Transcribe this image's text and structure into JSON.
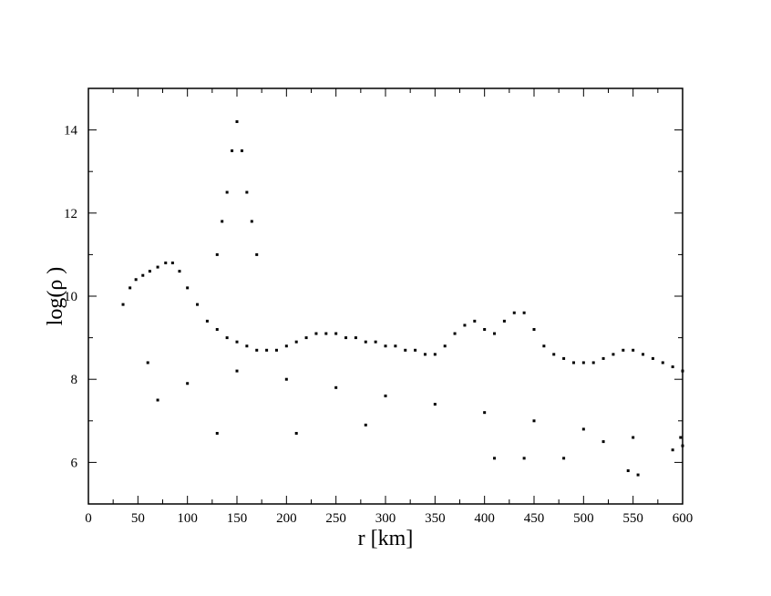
{
  "chart_data": {
    "type": "scatter",
    "title": "",
    "xlabel": "r [km]",
    "ylabel": "log(ρ )",
    "xlim": [
      0,
      600
    ],
    "ylim": [
      5,
      15
    ],
    "x_ticks": [
      "0",
      "50",
      "100",
      "150",
      "200",
      "250",
      "300",
      "350",
      "400",
      "450",
      "500",
      "550",
      "600"
    ],
    "y_ticks": [
      "6",
      "8",
      "10",
      "12",
      "14"
    ],
    "grid": false,
    "legend": "none",
    "marker_color": "#000000",
    "series": [
      {
        "points": [
          [
            35,
            9.8
          ],
          [
            42,
            10.2
          ],
          [
            48,
            10.4
          ],
          [
            55,
            10.5
          ],
          [
            62,
            10.6
          ],
          [
            70,
            10.7
          ],
          [
            78,
            10.8
          ],
          [
            85,
            10.8
          ],
          [
            92,
            10.6
          ],
          [
            100,
            10.2
          ],
          [
            110,
            9.8
          ],
          [
            120,
            9.4
          ],
          [
            130,
            9.2
          ],
          [
            140,
            9.0
          ],
          [
            150,
            8.9
          ],
          [
            160,
            8.8
          ],
          [
            170,
            8.7
          ],
          [
            180,
            8.7
          ],
          [
            190,
            8.7
          ],
          [
            200,
            8.8
          ],
          [
            210,
            8.9
          ],
          [
            220,
            9.0
          ],
          [
            230,
            9.1
          ],
          [
            240,
            9.1
          ],
          [
            250,
            9.1
          ],
          [
            260,
            9.0
          ],
          [
            270,
            9.0
          ],
          [
            280,
            8.9
          ],
          [
            290,
            8.9
          ],
          [
            300,
            8.8
          ],
          [
            310,
            8.8
          ],
          [
            320,
            8.7
          ],
          [
            330,
            8.7
          ],
          [
            340,
            8.6
          ],
          [
            350,
            8.6
          ],
          [
            360,
            8.8
          ],
          [
            370,
            9.1
          ],
          [
            380,
            9.3
          ],
          [
            390,
            9.4
          ],
          [
            400,
            9.2
          ],
          [
            410,
            9.1
          ],
          [
            420,
            9.4
          ],
          [
            430,
            9.6
          ],
          [
            440,
            9.6
          ],
          [
            450,
            9.2
          ],
          [
            460,
            8.8
          ],
          [
            470,
            8.6
          ],
          [
            480,
            8.5
          ],
          [
            490,
            8.4
          ],
          [
            500,
            8.4
          ],
          [
            510,
            8.4
          ],
          [
            520,
            8.5
          ],
          [
            530,
            8.6
          ],
          [
            540,
            8.7
          ],
          [
            550,
            8.7
          ],
          [
            560,
            8.6
          ],
          [
            570,
            8.5
          ],
          [
            580,
            8.4
          ],
          [
            590,
            8.3
          ],
          [
            600,
            8.2
          ],
          [
            130,
            11.0
          ],
          [
            135,
            11.8
          ],
          [
            140,
            12.5
          ],
          [
            145,
            13.5
          ],
          [
            150,
            14.2
          ],
          [
            155,
            13.5
          ],
          [
            160,
            12.5
          ],
          [
            165,
            11.8
          ],
          [
            170,
            11.0
          ],
          [
            150,
            8.2
          ],
          [
            200,
            8.0
          ],
          [
            250,
            7.8
          ],
          [
            300,
            7.6
          ],
          [
            350,
            7.4
          ],
          [
            400,
            7.2
          ],
          [
            450,
            7.0
          ],
          [
            500,
            6.8
          ],
          [
            550,
            6.6
          ],
          [
            600,
            6.4
          ],
          [
            60,
            8.4
          ],
          [
            70,
            7.5
          ],
          [
            100,
            7.9
          ],
          [
            130,
            6.7
          ],
          [
            210,
            6.7
          ],
          [
            280,
            6.9
          ],
          [
            410,
            6.1
          ],
          [
            440,
            6.1
          ],
          [
            480,
            6.1
          ],
          [
            520,
            6.5
          ],
          [
            545,
            5.8
          ],
          [
            555,
            5.7
          ],
          [
            590,
            6.3
          ],
          [
            598,
            6.6
          ]
        ]
      }
    ]
  }
}
